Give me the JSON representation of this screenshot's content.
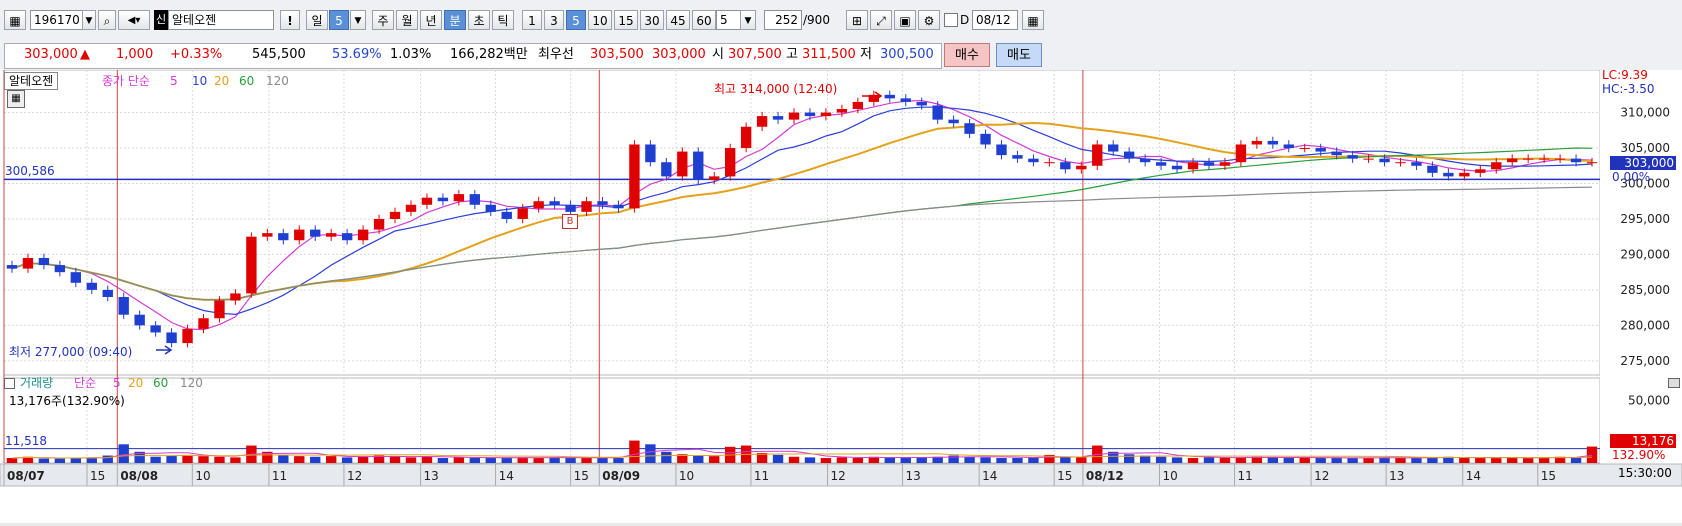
{
  "toolbar": {
    "code": "196170",
    "badge": "신",
    "name": "알테오젠",
    "alert": "!",
    "period_day": "일",
    "period_day_num": "5",
    "periods": [
      "주",
      "월",
      "년",
      "분",
      "초",
      "틱"
    ],
    "intervals": [
      "1",
      "3",
      "5",
      "10",
      "15",
      "30",
      "45",
      "60"
    ],
    "selected_interval": "5",
    "count_select": "5",
    "count_value": "252",
    "count_total": "/900",
    "d_label": "D",
    "date": "08/12"
  },
  "quote": {
    "price": "303,000",
    "change_arrow": "▲",
    "change": "1,000",
    "change_pct": "+0.33%",
    "volume": "545,500",
    "ratio": "53.69%",
    "turnover_pct": "1.03%",
    "amount": "166,282백만",
    "best_label": "최우선",
    "best_ask": "303,500",
    "best_bid": "303,000",
    "open_label": "시",
    "open": "307,500",
    "high_label": "고",
    "high": "311,500",
    "low_label": "저",
    "low": "300,500",
    "buy_button": "매수",
    "sell_button": "매도"
  },
  "price_panel": {
    "stock_label": "알테오젠",
    "ma_label": "종가 단순",
    "ma_periods": [
      "5",
      "10",
      "20",
      "60",
      "120"
    ],
    "ma_colors": [
      "#d23bd2",
      "#2b3fd8",
      "#e2a21e",
      "#2a9e3c",
      "#8a8a8a"
    ],
    "hline_value": "300,586",
    "high_annotation": "최고 314,000 (12:40)",
    "low_annotation": "최저 277,000 (09:40)",
    "lc": "LC:9.39",
    "hc": "HC:-3.50",
    "current_price": "303,000",
    "current_pct": "0.00%",
    "marker_b": "B"
  },
  "volume_panel": {
    "label": "거래량",
    "ma_label": "단순",
    "ma_periods": [
      "5",
      "20",
      "60",
      "120"
    ],
    "info": "13,176주(132.90%)",
    "hline_value": "11,518",
    "current": "13,176",
    "current_pct": "132.90%"
  },
  "x_axis": {
    "time": "15:30:00"
  },
  "chart_data": {
    "type": "candlestick",
    "y_ticks": [
      275000,
      280000,
      285000,
      290000,
      295000,
      300000,
      305000,
      310000
    ],
    "y_tick_labels": [
      "275,000",
      "280,000",
      "285,000",
      "290,000",
      "295,000",
      "300,000",
      "305,000",
      "310,000"
    ],
    "y_range": [
      273000,
      316000
    ],
    "volume_tick_labels": [
      "50,000"
    ],
    "x_labels": [
      {
        "pos": 0.0,
        "text": "08/07",
        "major": true
      },
      {
        "pos": 0.052,
        "text": "15",
        "major": false
      },
      {
        "pos": 0.071,
        "text": "08/08",
        "major": true
      },
      {
        "pos": 0.118,
        "text": "10",
        "major": false
      },
      {
        "pos": 0.166,
        "text": "11",
        "major": false
      },
      {
        "pos": 0.213,
        "text": "12",
        "major": false
      },
      {
        "pos": 0.261,
        "text": "13",
        "major": false
      },
      {
        "pos": 0.308,
        "text": "14",
        "major": false
      },
      {
        "pos": 0.355,
        "text": "15",
        "major": false
      },
      {
        "pos": 0.373,
        "text": "08/09",
        "major": true
      },
      {
        "pos": 0.421,
        "text": "10",
        "major": false
      },
      {
        "pos": 0.468,
        "text": "11",
        "major": false
      },
      {
        "pos": 0.516,
        "text": "12",
        "major": false
      },
      {
        "pos": 0.563,
        "text": "13",
        "major": false
      },
      {
        "pos": 0.611,
        "text": "14",
        "major": false
      },
      {
        "pos": 0.658,
        "text": "15",
        "major": false
      },
      {
        "pos": 0.676,
        "text": "08/12",
        "major": true
      },
      {
        "pos": 0.724,
        "text": "10",
        "major": false
      },
      {
        "pos": 0.771,
        "text": "11",
        "major": false
      },
      {
        "pos": 0.819,
        "text": "12",
        "major": false
      },
      {
        "pos": 0.866,
        "text": "13",
        "major": false
      },
      {
        "pos": 0.914,
        "text": "14",
        "major": false
      },
      {
        "pos": 0.961,
        "text": "15",
        "major": false
      }
    ],
    "closes": [
      288000,
      289500,
      288500,
      287500,
      286000,
      285000,
      284000,
      281500,
      280000,
      279000,
      277500,
      279500,
      281000,
      283500,
      284500,
      292500,
      293000,
      292000,
      293500,
      292500,
      293000,
      292000,
      293500,
      295000,
      296000,
      297000,
      298000,
      297500,
      298500,
      297000,
      296000,
      295000,
      296500,
      297500,
      297000,
      296000,
      297500,
      297000,
      296500,
      305500,
      303000,
      301000,
      304500,
      300500,
      301000,
      305000,
      308000,
      309500,
      309000,
      310000,
      309500,
      310000,
      310500,
      311500,
      312500,
      312000,
      311500,
      311000,
      309000,
      308500,
      307000,
      305500,
      304000,
      303500,
      303000,
      303000,
      302000,
      302500,
      305500,
      304500,
      303500,
      303000,
      302500,
      302000,
      303000,
      302500,
      303000,
      305500,
      306000,
      305500,
      305000,
      305000,
      304500,
      304000,
      303500,
      303500,
      303000,
      303000,
      302500,
      301500,
      301000,
      301500,
      302000,
      303000,
      303500,
      303500,
      303500,
      303500,
      303000,
      303000
    ],
    "volumes": [
      4000,
      5000,
      3500,
      3500,
      4000,
      4500,
      6000,
      15000,
      9000,
      5000,
      6000,
      6500,
      5500,
      5000,
      4500,
      14000,
      9000,
      6000,
      5500,
      5000,
      5500,
      4500,
      5000,
      6000,
      5500,
      4500,
      5000,
      4000,
      4500,
      4000,
      4000,
      4500,
      4500,
      4000,
      4500,
      4000,
      4000,
      4500,
      4000,
      18000,
      15000,
      9000,
      7000,
      6000,
      5500,
      13000,
      14000,
      8000,
      6500,
      5000,
      4500,
      4000,
      4500,
      4000,
      5000,
      4500,
      4000,
      4500,
      5000,
      6000,
      5000,
      4500,
      4000,
      4000,
      4500,
      6500,
      5000,
      4500,
      14000,
      9000,
      7000,
      6000,
      5000,
      4500,
      4000,
      4500,
      4000,
      4500,
      5000,
      4500,
      4000,
      4000,
      4000,
      4500,
      4000,
      4000,
      4500,
      4000,
      4000,
      4500,
      5000,
      4500,
      4000,
      4000,
      4500,
      4000,
      4500,
      5000,
      4500,
      13176
    ],
    "vol_range": [
      0,
      65000
    ],
    "current_price": 303000,
    "hline_price": 300586
  }
}
